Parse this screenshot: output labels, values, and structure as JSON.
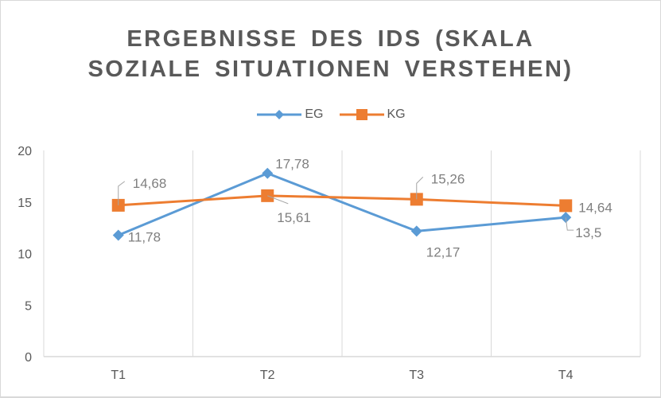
{
  "chart_data": {
    "type": "line",
    "title_lines": [
      "ERGEBNISSE DES IDS (SKALA",
      "SOZIALE SITUATIONEN VERSTEHEN)"
    ],
    "title": "ERGEBNISSE DES IDS (SKALA SOZIALE SITUATIONEN VERSTEHEN)",
    "categories": [
      "T1",
      "T2",
      "T3",
      "T4"
    ],
    "series": [
      {
        "name": "EG",
        "color": "#5b9bd5",
        "marker": "diamond",
        "values": [
          11.78,
          17.78,
          12.17,
          13.5
        ],
        "labels": [
          "11,78",
          "17,78",
          "12,17",
          "13,5"
        ]
      },
      {
        "name": "KG",
        "color": "#ed7d31",
        "marker": "square",
        "values": [
          14.68,
          15.61,
          15.26,
          14.64
        ],
        "labels": [
          "14,68",
          "15,61",
          "15,26",
          "14,64"
        ]
      }
    ],
    "yticks": [
      0,
      5,
      10,
      15,
      20
    ],
    "ylim": [
      0,
      20
    ],
    "xlabel": "",
    "ylabel": "",
    "grid": "vertical category dividers",
    "legend_position": "top-center"
  }
}
